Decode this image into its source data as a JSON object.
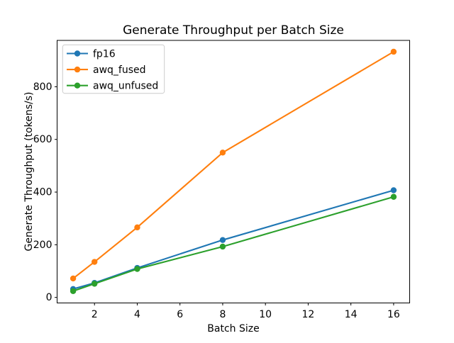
{
  "chart_data": {
    "type": "line",
    "title": "Generate Throughput per Batch Size",
    "xlabel": "Batch Size",
    "ylabel": "Generate Throughput (tokens/s)",
    "x": [
      1,
      2,
      4,
      8,
      16
    ],
    "series": [
      {
        "name": "fp16",
        "color": "#1f77b4",
        "values": [
          32,
          55,
          112,
          218,
          407
        ]
      },
      {
        "name": "awq_fused",
        "color": "#ff7f0e",
        "values": [
          72,
          135,
          266,
          550,
          933
        ]
      },
      {
        "name": "awq_unfused",
        "color": "#2ca02c",
        "values": [
          24,
          52,
          108,
          193,
          382
        ]
      }
    ],
    "xticks": [
      2,
      4,
      6,
      8,
      10,
      12,
      14,
      16
    ],
    "yticks": [
      0,
      200,
      400,
      600,
      800
    ],
    "xlim": [
      0.25,
      16.75
    ],
    "ylim": [
      -21,
      976
    ],
    "marker": "circle",
    "grid": false,
    "legend": {
      "position": "upper left",
      "entries": [
        "fp16",
        "awq_fused",
        "awq_unfused"
      ]
    },
    "colors": {
      "background": "#ffffff",
      "axis": "#000000",
      "legend_border": "#cccccc"
    }
  }
}
